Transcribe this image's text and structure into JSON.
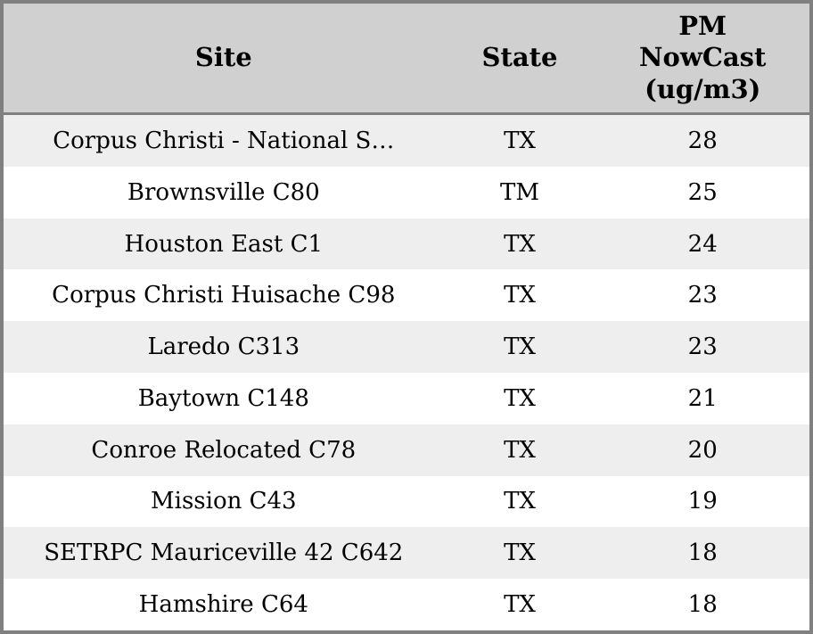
{
  "table": {
    "columns": {
      "site": "Site",
      "state": "State",
      "pm": "PM NowCast (ug/m3)"
    },
    "rows": [
      {
        "site": "Corpus Christi - National S…",
        "state": "TX",
        "pm": "28"
      },
      {
        "site": "Brownsville C80",
        "state": "TM",
        "pm": "25"
      },
      {
        "site": "Houston East C1",
        "state": "TX",
        "pm": "24"
      },
      {
        "site": "Corpus Christi Huisache C98",
        "state": "TX",
        "pm": "23"
      },
      {
        "site": "Laredo C313",
        "state": "TX",
        "pm": "23"
      },
      {
        "site": "Baytown C148",
        "state": "TX",
        "pm": "21"
      },
      {
        "site": "Conroe Relocated C78",
        "state": "TX",
        "pm": "20"
      },
      {
        "site": "Mission C43",
        "state": "TX",
        "pm": "19"
      },
      {
        "site": "SETRPC Mauriceville 42 C642",
        "state": "TX",
        "pm": "18"
      },
      {
        "site": "Hamshire C64",
        "state": "TX",
        "pm": "18"
      }
    ],
    "colors": {
      "outer_border": "#808080",
      "header_bg": "#d0d0d0",
      "header_separator": "#808080",
      "row_stripe_bg": "#eeeeee",
      "row_bg": "#ffffff",
      "text": "#000000"
    }
  }
}
